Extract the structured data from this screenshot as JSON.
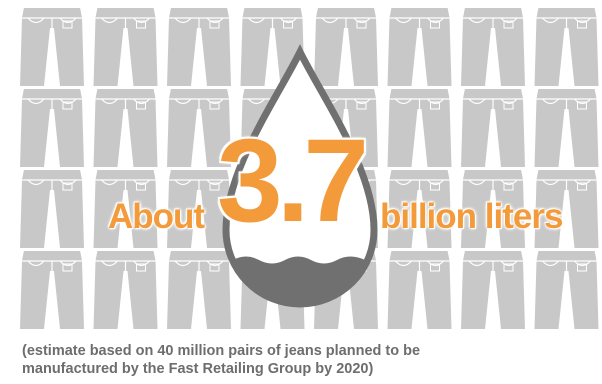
{
  "headline": {
    "prefix": "About",
    "value": "3.7",
    "unit": "billion liters"
  },
  "caption": {
    "line1": "(estimate based on 40 million pairs of jeans planned to be",
    "line2": "manufactured by the Fast Retailing Group by 2020)"
  },
  "graphic": {
    "icon": "jeans-icon",
    "drop_icon": "water-drop-icon",
    "jeans_color": "#c8c8c8",
    "drop_color": "#707070",
    "accent_color": "#f39a3a",
    "text_color": "#6d6d6d"
  }
}
